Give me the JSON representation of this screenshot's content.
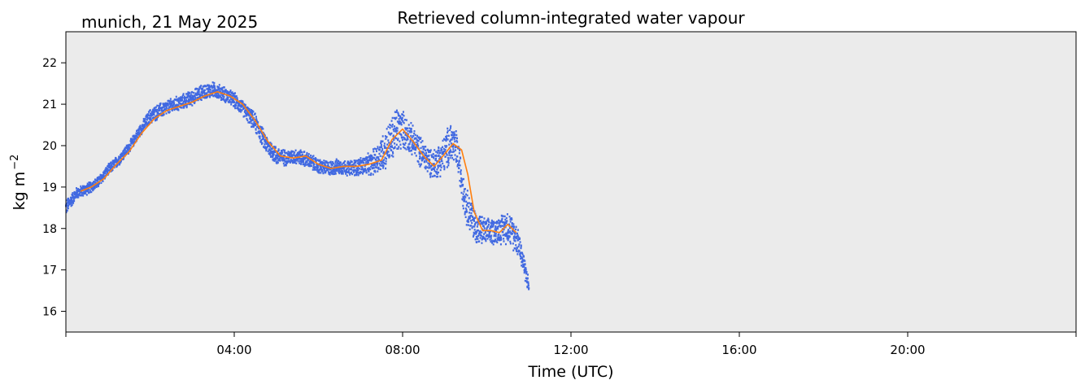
{
  "chart_data": {
    "type": "line",
    "title": "Retrieved column-integrated water vapour",
    "subtitle": "munich, 21 May 2025",
    "xlabel": "Time (UTC)",
    "ylabel": "kg m",
    "ylabel_exponent": "−2",
    "xlim": [
      "00:00",
      "24:00"
    ],
    "ylim": [
      15.5,
      22.75
    ],
    "x_ticks": [
      {
        "hour": 4,
        "label": "04:00"
      },
      {
        "hour": 8,
        "label": "08:00"
      },
      {
        "hour": 12,
        "label": "12:00"
      },
      {
        "hour": 16,
        "label": "16:00"
      },
      {
        "hour": 20,
        "label": "20:00"
      }
    ],
    "y_ticks": [
      16,
      17,
      18,
      19,
      20,
      21,
      22
    ],
    "grid": false,
    "background": "#ebebeb",
    "series": [
      {
        "style": "scatter",
        "color": "#4169e1",
        "x_hours": [
          0.0,
          0.25,
          0.5,
          0.75,
          1.0,
          1.25,
          1.5,
          1.75,
          2.0,
          2.25,
          2.5,
          2.75,
          3.0,
          3.25,
          3.5,
          3.75,
          4.0,
          4.25,
          4.5,
          4.75,
          5.0,
          5.25,
          5.5,
          5.75,
          6.0,
          6.25,
          6.5,
          6.75,
          7.0,
          7.25,
          7.5,
          7.75,
          7.85,
          8.0,
          8.25,
          8.5,
          8.75,
          9.0,
          9.15,
          9.3,
          9.5,
          9.75,
          10.0,
          10.25,
          10.5,
          10.75,
          11.0
        ],
        "y_center": [
          18.5,
          18.85,
          18.95,
          19.1,
          19.4,
          19.65,
          19.95,
          20.35,
          20.7,
          20.85,
          20.95,
          21.05,
          21.15,
          21.3,
          21.35,
          21.25,
          21.1,
          20.85,
          20.55,
          20.05,
          19.75,
          19.7,
          19.75,
          19.65,
          19.5,
          19.45,
          19.5,
          19.45,
          19.5,
          19.55,
          19.8,
          20.15,
          20.35,
          20.4,
          20.1,
          19.75,
          19.55,
          19.8,
          20.1,
          19.85,
          18.6,
          18.0,
          17.9,
          17.95,
          18.05,
          17.7,
          16.6
        ],
        "spread": [
          0.2,
          0.15,
          0.15,
          0.15,
          0.15,
          0.15,
          0.15,
          0.15,
          0.2,
          0.2,
          0.2,
          0.2,
          0.2,
          0.2,
          0.2,
          0.2,
          0.2,
          0.2,
          0.25,
          0.25,
          0.25,
          0.2,
          0.2,
          0.2,
          0.2,
          0.2,
          0.2,
          0.2,
          0.25,
          0.3,
          0.5,
          0.6,
          0.7,
          0.5,
          0.4,
          0.4,
          0.4,
          0.5,
          0.6,
          0.5,
          0.5,
          0.45,
          0.35,
          0.35,
          0.45,
          0.4,
          0.2
        ]
      },
      {
        "style": "line",
        "color": "#ff7f0e",
        "x_hours": [
          0.35,
          0.6,
          0.9,
          1.2,
          1.5,
          1.8,
          2.1,
          2.4,
          2.7,
          3.0,
          3.3,
          3.6,
          3.9,
          4.2,
          4.5,
          4.8,
          5.1,
          5.4,
          5.7,
          6.0,
          6.3,
          6.6,
          6.9,
          7.2,
          7.5,
          7.75,
          8.0,
          8.25,
          8.5,
          8.75,
          9.0,
          9.2,
          9.4,
          9.55,
          9.7,
          9.9,
          10.1,
          10.3,
          10.5,
          10.7
        ],
        "y": [
          18.9,
          19.0,
          19.2,
          19.55,
          19.85,
          20.3,
          20.65,
          20.85,
          20.95,
          21.05,
          21.2,
          21.3,
          21.2,
          21.0,
          20.6,
          20.1,
          19.75,
          19.7,
          19.75,
          19.55,
          19.45,
          19.5,
          19.5,
          19.55,
          19.65,
          20.15,
          20.4,
          20.1,
          19.75,
          19.5,
          19.8,
          20.05,
          19.9,
          19.3,
          18.4,
          17.95,
          17.95,
          17.9,
          18.1,
          17.9
        ]
      }
    ]
  }
}
